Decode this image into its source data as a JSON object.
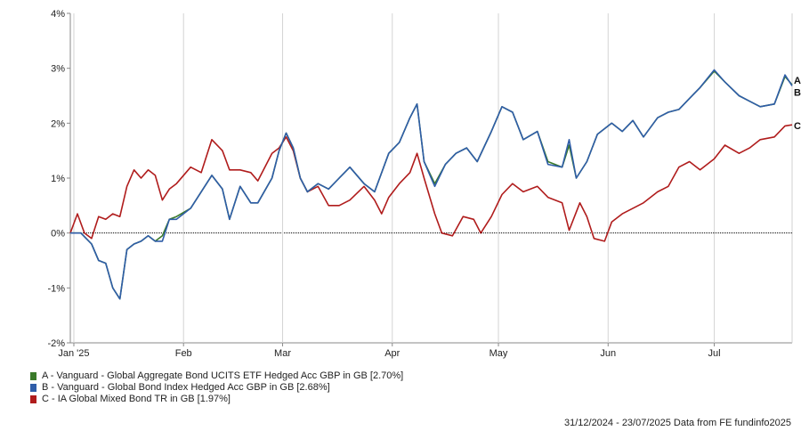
{
  "chart_data": {
    "type": "line",
    "title": "",
    "xlabel": "",
    "ylabel": "",
    "x_tick_labels": [
      "Jan '25",
      "Feb",
      "Mar",
      "Apr",
      "May",
      "Jun",
      "Jul"
    ],
    "x_ticks": [
      "2025-01-01",
      "2025-02-01",
      "2025-03-01",
      "2025-04-01",
      "2025-05-01",
      "2025-06-01",
      "2025-07-01"
    ],
    "x_range": [
      "2024-12-31",
      "2025-07-23"
    ],
    "ylim": [
      -2,
      4
    ],
    "y_ticks": [
      -2,
      -1,
      0,
      1,
      2,
      3,
      4
    ],
    "y_tick_labels": [
      "-2%",
      "-1%",
      "0%",
      "1%",
      "2%",
      "3%",
      "4%"
    ],
    "y_unit": "%",
    "grid": "vertical lines at month starts, dotted zero line",
    "legend_position": "bottom-left",
    "series": [
      {
        "name": "A - Vanguard - Global Aggregate Bond UCITS ETF Hedged Acc GBP in GB [2.70%]",
        "marker_label": "A",
        "color": "#3a7a2a",
        "points": [
          [
            "2024-12-31",
            0
          ],
          [
            "2025-01-03",
            0
          ],
          [
            "2025-01-06",
            -0.2
          ],
          [
            "2025-01-08",
            -0.5
          ],
          [
            "2025-01-10",
            -0.55
          ],
          [
            "2025-01-12",
            -1.0
          ],
          [
            "2025-01-14",
            -1.2
          ],
          [
            "2025-01-16",
            -0.3
          ],
          [
            "2025-01-18",
            -0.2
          ],
          [
            "2025-01-20",
            -0.15
          ],
          [
            "2025-01-22",
            -0.05
          ],
          [
            "2025-01-24",
            -0.15
          ],
          [
            "2025-01-26",
            -0.05
          ],
          [
            "2025-01-28",
            0.25
          ],
          [
            "2025-01-30",
            0.3
          ],
          [
            "2025-02-03",
            0.45
          ],
          [
            "2025-02-06",
            0.75
          ],
          [
            "2025-02-09",
            1.05
          ],
          [
            "2025-02-12",
            0.8
          ],
          [
            "2025-02-14",
            0.25
          ],
          [
            "2025-02-17",
            0.85
          ],
          [
            "2025-02-20",
            0.55
          ],
          [
            "2025-02-22",
            0.55
          ],
          [
            "2025-02-26",
            1.0
          ],
          [
            "2025-02-28",
            1.5
          ],
          [
            "2025-03-02",
            1.82
          ],
          [
            "2025-03-04",
            1.55
          ],
          [
            "2025-03-06",
            1.0
          ],
          [
            "2025-03-08",
            0.75
          ],
          [
            "2025-03-11",
            0.9
          ],
          [
            "2025-03-14",
            0.8
          ],
          [
            "2025-03-17",
            1.0
          ],
          [
            "2025-03-20",
            1.2
          ],
          [
            "2025-03-24",
            0.9
          ],
          [
            "2025-03-27",
            0.75
          ],
          [
            "2025-03-31",
            1.45
          ],
          [
            "2025-04-03",
            1.65
          ],
          [
            "2025-04-06",
            2.1
          ],
          [
            "2025-04-08",
            2.35
          ],
          [
            "2025-04-10",
            1.3
          ],
          [
            "2025-04-13",
            0.9
          ],
          [
            "2025-04-16",
            1.25
          ],
          [
            "2025-04-19",
            1.45
          ],
          [
            "2025-04-22",
            1.55
          ],
          [
            "2025-04-25",
            1.3
          ],
          [
            "2025-04-29",
            1.85
          ],
          [
            "2025-05-02",
            2.3
          ],
          [
            "2025-05-05",
            2.2
          ],
          [
            "2025-05-08",
            1.7
          ],
          [
            "2025-05-12",
            1.85
          ],
          [
            "2025-05-15",
            1.3
          ],
          [
            "2025-05-19",
            1.2
          ],
          [
            "2025-05-21",
            1.6
          ],
          [
            "2025-05-23",
            1.0
          ],
          [
            "2025-05-26",
            1.3
          ],
          [
            "2025-05-29",
            1.8
          ],
          [
            "2025-06-02",
            2.0
          ],
          [
            "2025-06-05",
            1.85
          ],
          [
            "2025-06-08",
            2.05
          ],
          [
            "2025-06-11",
            1.75
          ],
          [
            "2025-06-15",
            2.1
          ],
          [
            "2025-06-18",
            2.2
          ],
          [
            "2025-06-21",
            2.25
          ],
          [
            "2025-06-24",
            2.45
          ],
          [
            "2025-06-27",
            2.65
          ],
          [
            "2025-07-01",
            2.95
          ],
          [
            "2025-07-04",
            2.75
          ],
          [
            "2025-07-08",
            2.5
          ],
          [
            "2025-07-11",
            2.4
          ],
          [
            "2025-07-14",
            2.3
          ],
          [
            "2025-07-18",
            2.35
          ],
          [
            "2025-07-21",
            2.85
          ],
          [
            "2025-07-23",
            2.7
          ]
        ]
      },
      {
        "name": "B - Vanguard - Global Bond Index Hedged Acc GBP in GB [2.68%]",
        "marker_label": "B",
        "color": "#2f5da8",
        "points": [
          [
            "2024-12-31",
            0
          ],
          [
            "2025-01-03",
            0
          ],
          [
            "2025-01-06",
            -0.2
          ],
          [
            "2025-01-08",
            -0.5
          ],
          [
            "2025-01-10",
            -0.55
          ],
          [
            "2025-01-12",
            -1.0
          ],
          [
            "2025-01-14",
            -1.2
          ],
          [
            "2025-01-16",
            -0.3
          ],
          [
            "2025-01-18",
            -0.2
          ],
          [
            "2025-01-20",
            -0.15
          ],
          [
            "2025-01-22",
            -0.05
          ],
          [
            "2025-01-24",
            -0.15
          ],
          [
            "2025-01-26",
            -0.15
          ],
          [
            "2025-01-28",
            0.25
          ],
          [
            "2025-01-30",
            0.25
          ],
          [
            "2025-02-03",
            0.45
          ],
          [
            "2025-02-06",
            0.75
          ],
          [
            "2025-02-09",
            1.05
          ],
          [
            "2025-02-12",
            0.8
          ],
          [
            "2025-02-14",
            0.25
          ],
          [
            "2025-02-17",
            0.85
          ],
          [
            "2025-02-20",
            0.55
          ],
          [
            "2025-02-22",
            0.55
          ],
          [
            "2025-02-26",
            1.0
          ],
          [
            "2025-02-28",
            1.5
          ],
          [
            "2025-03-02",
            1.82
          ],
          [
            "2025-03-04",
            1.55
          ],
          [
            "2025-03-06",
            1.0
          ],
          [
            "2025-03-08",
            0.75
          ],
          [
            "2025-03-11",
            0.9
          ],
          [
            "2025-03-14",
            0.8
          ],
          [
            "2025-03-17",
            1.0
          ],
          [
            "2025-03-20",
            1.2
          ],
          [
            "2025-03-24",
            0.9
          ],
          [
            "2025-03-27",
            0.75
          ],
          [
            "2025-03-31",
            1.45
          ],
          [
            "2025-04-03",
            1.65
          ],
          [
            "2025-04-06",
            2.1
          ],
          [
            "2025-04-08",
            2.35
          ],
          [
            "2025-04-10",
            1.3
          ],
          [
            "2025-04-13",
            0.85
          ],
          [
            "2025-04-16",
            1.25
          ],
          [
            "2025-04-19",
            1.45
          ],
          [
            "2025-04-22",
            1.55
          ],
          [
            "2025-04-25",
            1.3
          ],
          [
            "2025-04-29",
            1.85
          ],
          [
            "2025-05-02",
            2.3
          ],
          [
            "2025-05-05",
            2.2
          ],
          [
            "2025-05-08",
            1.7
          ],
          [
            "2025-05-12",
            1.85
          ],
          [
            "2025-05-15",
            1.25
          ],
          [
            "2025-05-19",
            1.2
          ],
          [
            "2025-05-21",
            1.7
          ],
          [
            "2025-05-23",
            1.0
          ],
          [
            "2025-05-26",
            1.3
          ],
          [
            "2025-05-29",
            1.8
          ],
          [
            "2025-06-02",
            2.0
          ],
          [
            "2025-06-05",
            1.85
          ],
          [
            "2025-06-08",
            2.05
          ],
          [
            "2025-06-11",
            1.75
          ],
          [
            "2025-06-15",
            2.1
          ],
          [
            "2025-06-18",
            2.2
          ],
          [
            "2025-06-21",
            2.25
          ],
          [
            "2025-06-24",
            2.45
          ],
          [
            "2025-06-27",
            2.65
          ],
          [
            "2025-07-01",
            2.97
          ],
          [
            "2025-07-04",
            2.75
          ],
          [
            "2025-07-08",
            2.5
          ],
          [
            "2025-07-11",
            2.4
          ],
          [
            "2025-07-14",
            2.3
          ],
          [
            "2025-07-18",
            2.35
          ],
          [
            "2025-07-21",
            2.88
          ],
          [
            "2025-07-23",
            2.68
          ]
        ]
      },
      {
        "name": "C - IA Global Mixed Bond TR in GB [1.97%]",
        "marker_label": "C",
        "color": "#b01c1c",
        "points": [
          [
            "2024-12-31",
            0
          ],
          [
            "2025-01-02",
            0.35
          ],
          [
            "2025-01-04",
            0.0
          ],
          [
            "2025-01-06",
            -0.1
          ],
          [
            "2025-01-08",
            0.3
          ],
          [
            "2025-01-10",
            0.25
          ],
          [
            "2025-01-12",
            0.35
          ],
          [
            "2025-01-14",
            0.3
          ],
          [
            "2025-01-16",
            0.85
          ],
          [
            "2025-01-18",
            1.15
          ],
          [
            "2025-01-20",
            1.0
          ],
          [
            "2025-01-22",
            1.15
          ],
          [
            "2025-01-24",
            1.05
          ],
          [
            "2025-01-26",
            0.6
          ],
          [
            "2025-01-28",
            0.8
          ],
          [
            "2025-01-30",
            0.9
          ],
          [
            "2025-02-03",
            1.2
          ],
          [
            "2025-02-06",
            1.1
          ],
          [
            "2025-02-09",
            1.7
          ],
          [
            "2025-02-12",
            1.5
          ],
          [
            "2025-02-14",
            1.15
          ],
          [
            "2025-02-17",
            1.15
          ],
          [
            "2025-02-20",
            1.1
          ],
          [
            "2025-02-22",
            0.95
          ],
          [
            "2025-02-26",
            1.45
          ],
          [
            "2025-02-28",
            1.55
          ],
          [
            "2025-03-02",
            1.75
          ],
          [
            "2025-03-04",
            1.5
          ],
          [
            "2025-03-06",
            1.0
          ],
          [
            "2025-03-08",
            0.75
          ],
          [
            "2025-03-11",
            0.85
          ],
          [
            "2025-03-14",
            0.5
          ],
          [
            "2025-03-17",
            0.5
          ],
          [
            "2025-03-20",
            0.6
          ],
          [
            "2025-03-24",
            0.85
          ],
          [
            "2025-03-27",
            0.6
          ],
          [
            "2025-03-29",
            0.35
          ],
          [
            "2025-03-31",
            0.65
          ],
          [
            "2025-04-03",
            0.9
          ],
          [
            "2025-04-06",
            1.1
          ],
          [
            "2025-04-08",
            1.45
          ],
          [
            "2025-04-10",
            1.0
          ],
          [
            "2025-04-13",
            0.35
          ],
          [
            "2025-04-15",
            0.0
          ],
          [
            "2025-04-18",
            -0.05
          ],
          [
            "2025-04-21",
            0.3
          ],
          [
            "2025-04-24",
            0.25
          ],
          [
            "2025-04-26",
            0.0
          ],
          [
            "2025-04-29",
            0.3
          ],
          [
            "2025-05-02",
            0.7
          ],
          [
            "2025-05-05",
            0.9
          ],
          [
            "2025-05-08",
            0.75
          ],
          [
            "2025-05-12",
            0.85
          ],
          [
            "2025-05-15",
            0.65
          ],
          [
            "2025-05-19",
            0.55
          ],
          [
            "2025-05-21",
            0.05
          ],
          [
            "2025-05-24",
            0.55
          ],
          [
            "2025-05-26",
            0.3
          ],
          [
            "2025-05-28",
            -0.1
          ],
          [
            "2025-05-31",
            -0.15
          ],
          [
            "2025-06-02",
            0.2
          ],
          [
            "2025-06-05",
            0.35
          ],
          [
            "2025-06-08",
            0.45
          ],
          [
            "2025-06-11",
            0.55
          ],
          [
            "2025-06-15",
            0.75
          ],
          [
            "2025-06-18",
            0.85
          ],
          [
            "2025-06-21",
            1.2
          ],
          [
            "2025-06-24",
            1.3
          ],
          [
            "2025-06-27",
            1.15
          ],
          [
            "2025-07-01",
            1.35
          ],
          [
            "2025-07-04",
            1.6
          ],
          [
            "2025-07-08",
            1.45
          ],
          [
            "2025-07-11",
            1.55
          ],
          [
            "2025-07-14",
            1.7
          ],
          [
            "2025-07-18",
            1.75
          ],
          [
            "2025-07-21",
            1.95
          ],
          [
            "2025-07-23",
            1.97
          ]
        ]
      }
    ]
  },
  "legend": {
    "items": [
      {
        "label": "A - Vanguard - Global Aggregate Bond UCITS ETF Hedged Acc GBP in GB [2.70%]",
        "color": "#3a7a2a"
      },
      {
        "label": "B - Vanguard - Global Bond Index Hedged Acc GBP in GB [2.68%]",
        "color": "#2f5da8"
      },
      {
        "label": "C - IA Global Mixed Bond TR in GB [1.97%]",
        "color": "#b01c1c"
      }
    ]
  },
  "footer": {
    "text": "31/12/2024 - 23/07/2025 Data from FE fundinfo2025"
  }
}
